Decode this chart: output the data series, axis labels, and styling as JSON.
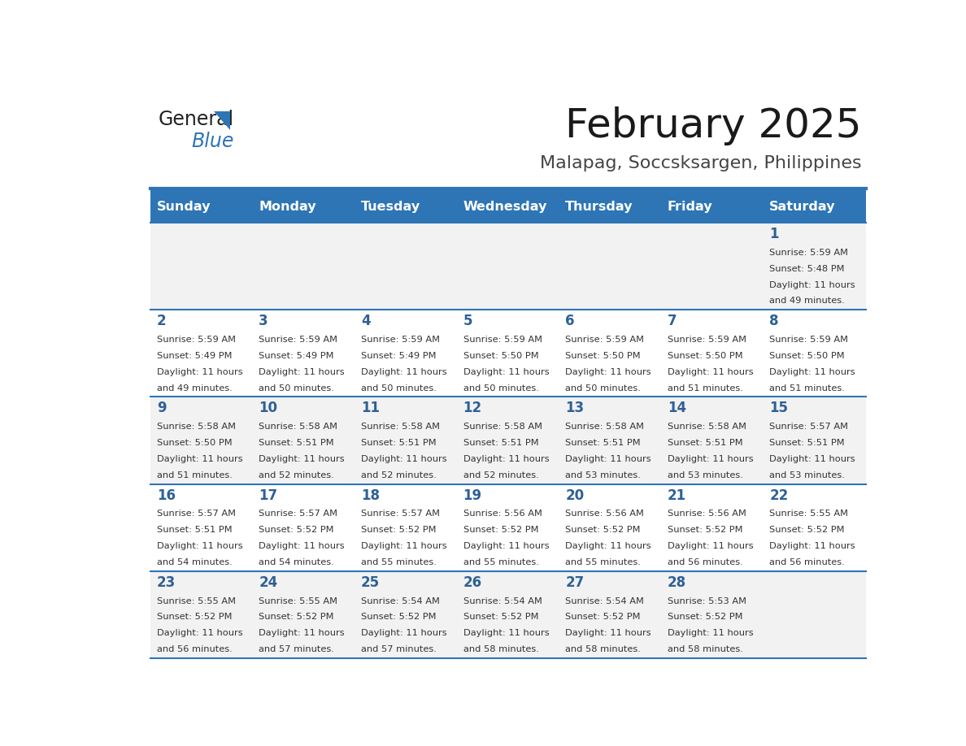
{
  "title": "February 2025",
  "subtitle": "Malapag, Soccsksargen, Philippines",
  "header_bg": "#2E75B6",
  "header_text_color": "#FFFFFF",
  "day_names": [
    "Sunday",
    "Monday",
    "Tuesday",
    "Wednesday",
    "Thursday",
    "Friday",
    "Saturday"
  ],
  "divider_color": "#2E75B6",
  "cell_bg_odd": "#F2F2F2",
  "cell_bg_even": "#FFFFFF",
  "text_color": "#333333",
  "day_num_color": "#2E6096",
  "logo_general_color": "#222222",
  "logo_blue_color": "#2E75B6",
  "calendar": [
    [
      {
        "day": 0,
        "sunrise": "",
        "sunset": "",
        "daylight": ""
      },
      {
        "day": 0,
        "sunrise": "",
        "sunset": "",
        "daylight": ""
      },
      {
        "day": 0,
        "sunrise": "",
        "sunset": "",
        "daylight": ""
      },
      {
        "day": 0,
        "sunrise": "",
        "sunset": "",
        "daylight": ""
      },
      {
        "day": 0,
        "sunrise": "",
        "sunset": "",
        "daylight": ""
      },
      {
        "day": 0,
        "sunrise": "",
        "sunset": "",
        "daylight": ""
      },
      {
        "day": 1,
        "sunrise": "5:59 AM",
        "sunset": "5:48 PM",
        "daylight": "11 hours and 49 minutes."
      }
    ],
    [
      {
        "day": 2,
        "sunrise": "5:59 AM",
        "sunset": "5:49 PM",
        "daylight": "11 hours and 49 minutes."
      },
      {
        "day": 3,
        "sunrise": "5:59 AM",
        "sunset": "5:49 PM",
        "daylight": "11 hours and 50 minutes."
      },
      {
        "day": 4,
        "sunrise": "5:59 AM",
        "sunset": "5:49 PM",
        "daylight": "11 hours and 50 minutes."
      },
      {
        "day": 5,
        "sunrise": "5:59 AM",
        "sunset": "5:50 PM",
        "daylight": "11 hours and 50 minutes."
      },
      {
        "day": 6,
        "sunrise": "5:59 AM",
        "sunset": "5:50 PM",
        "daylight": "11 hours and 50 minutes."
      },
      {
        "day": 7,
        "sunrise": "5:59 AM",
        "sunset": "5:50 PM",
        "daylight": "11 hours and 51 minutes."
      },
      {
        "day": 8,
        "sunrise": "5:59 AM",
        "sunset": "5:50 PM",
        "daylight": "11 hours and 51 minutes."
      }
    ],
    [
      {
        "day": 9,
        "sunrise": "5:58 AM",
        "sunset": "5:50 PM",
        "daylight": "11 hours and 51 minutes."
      },
      {
        "day": 10,
        "sunrise": "5:58 AM",
        "sunset": "5:51 PM",
        "daylight": "11 hours and 52 minutes."
      },
      {
        "day": 11,
        "sunrise": "5:58 AM",
        "sunset": "5:51 PM",
        "daylight": "11 hours and 52 minutes."
      },
      {
        "day": 12,
        "sunrise": "5:58 AM",
        "sunset": "5:51 PM",
        "daylight": "11 hours and 52 minutes."
      },
      {
        "day": 13,
        "sunrise": "5:58 AM",
        "sunset": "5:51 PM",
        "daylight": "11 hours and 53 minutes."
      },
      {
        "day": 14,
        "sunrise": "5:58 AM",
        "sunset": "5:51 PM",
        "daylight": "11 hours and 53 minutes."
      },
      {
        "day": 15,
        "sunrise": "5:57 AM",
        "sunset": "5:51 PM",
        "daylight": "11 hours and 53 minutes."
      }
    ],
    [
      {
        "day": 16,
        "sunrise": "5:57 AM",
        "sunset": "5:51 PM",
        "daylight": "11 hours and 54 minutes."
      },
      {
        "day": 17,
        "sunrise": "5:57 AM",
        "sunset": "5:52 PM",
        "daylight": "11 hours and 54 minutes."
      },
      {
        "day": 18,
        "sunrise": "5:57 AM",
        "sunset": "5:52 PM",
        "daylight": "11 hours and 55 minutes."
      },
      {
        "day": 19,
        "sunrise": "5:56 AM",
        "sunset": "5:52 PM",
        "daylight": "11 hours and 55 minutes."
      },
      {
        "day": 20,
        "sunrise": "5:56 AM",
        "sunset": "5:52 PM",
        "daylight": "11 hours and 55 minutes."
      },
      {
        "day": 21,
        "sunrise": "5:56 AM",
        "sunset": "5:52 PM",
        "daylight": "11 hours and 56 minutes."
      },
      {
        "day": 22,
        "sunrise": "5:55 AM",
        "sunset": "5:52 PM",
        "daylight": "11 hours and 56 minutes."
      }
    ],
    [
      {
        "day": 23,
        "sunrise": "5:55 AM",
        "sunset": "5:52 PM",
        "daylight": "11 hours and 56 minutes."
      },
      {
        "day": 24,
        "sunrise": "5:55 AM",
        "sunset": "5:52 PM",
        "daylight": "11 hours and 57 minutes."
      },
      {
        "day": 25,
        "sunrise": "5:54 AM",
        "sunset": "5:52 PM",
        "daylight": "11 hours and 57 minutes."
      },
      {
        "day": 26,
        "sunrise": "5:54 AM",
        "sunset": "5:52 PM",
        "daylight": "11 hours and 58 minutes."
      },
      {
        "day": 27,
        "sunrise": "5:54 AM",
        "sunset": "5:52 PM",
        "daylight": "11 hours and 58 minutes."
      },
      {
        "day": 28,
        "sunrise": "5:53 AM",
        "sunset": "5:52 PM",
        "daylight": "11 hours and 58 minutes."
      },
      {
        "day": 0,
        "sunrise": "",
        "sunset": "",
        "daylight": ""
      }
    ]
  ]
}
